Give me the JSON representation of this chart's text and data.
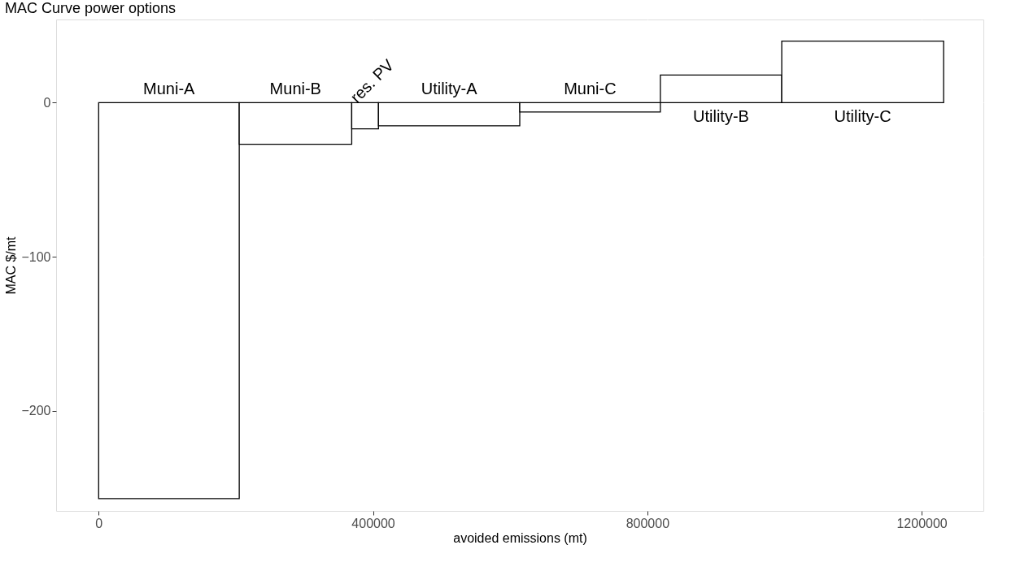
{
  "chart_data": {
    "type": "histogram",
    "title": "MAC Curve power options",
    "xlabel": "avoided emissions (mt)",
    "ylabel": "MAC $/mt",
    "bins": [
      0,
      205000,
      369000,
      408000,
      614000,
      819000,
      996000,
      1232000
    ],
    "values": [
      -257,
      -27,
      -17,
      -15,
      -6,
      18,
      40
    ],
    "color": "#ffffff",
    "annotations": [
      {
        "text": "Muni-A",
        "x": 102500,
        "y": 0
      },
      {
        "text": "Muni-B",
        "x": 287000,
        "y": 0
      },
      {
        "text": "res. PV",
        "x": 388500,
        "y": 0
      },
      {
        "text": "Utility-A",
        "x": 511000,
        "y": 0
      },
      {
        "text": "Muni-C",
        "x": 716500,
        "y": 0
      },
      {
        "text": "Utility-B",
        "x": 907500,
        "y": 0
      },
      {
        "text": "Utility-C",
        "x": 1114000,
        "y": 0
      }
    ],
    "xlim": [
      -62000,
      1290000
    ],
    "ylim": [
      -265,
      54
    ],
    "xticks": [
      0,
      400000,
      800000,
      1200000
    ],
    "yticks": [
      -200,
      -100,
      0
    ],
    "grid": true
  }
}
